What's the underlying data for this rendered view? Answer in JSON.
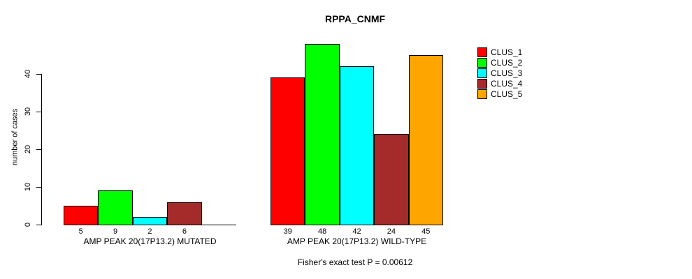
{
  "chart_data": {
    "type": "bar",
    "title": "RPPA_CNMF",
    "ylabel": "number of cases",
    "ylim": [
      0,
      40
    ],
    "yticks": [
      0,
      10,
      20,
      30,
      40
    ],
    "grid": false,
    "legend_position": "right",
    "categories": [
      "AMP PEAK 20(17P13.2) MUTATED",
      "AMP PEAK 20(17P13.2) WILD-TYPE"
    ],
    "series": [
      {
        "name": "CLUS_1",
        "color": "#ff0000",
        "values": [
          5,
          39
        ]
      },
      {
        "name": "CLUS_2",
        "color": "#00ff00",
        "values": [
          9,
          48
        ]
      },
      {
        "name": "CLUS_3",
        "color": "#00ffff",
        "values": [
          2,
          42
        ]
      },
      {
        "name": "CLUS_4",
        "color": "#a52a2a",
        "values": [
          6,
          24
        ]
      },
      {
        "name": "CLUS_5",
        "color": "#ffa500",
        "values": [
          null,
          45
        ]
      }
    ],
    "bar_value_labels": [
      [
        5,
        9,
        2,
        6,
        null
      ],
      [
        39,
        48,
        42,
        24,
        45
      ]
    ],
    "annotation": "Fisher's exact test P = 0.00612",
    "axis_color": "#000000",
    "text_color": "#000000",
    "background_color": "#ffffff"
  }
}
